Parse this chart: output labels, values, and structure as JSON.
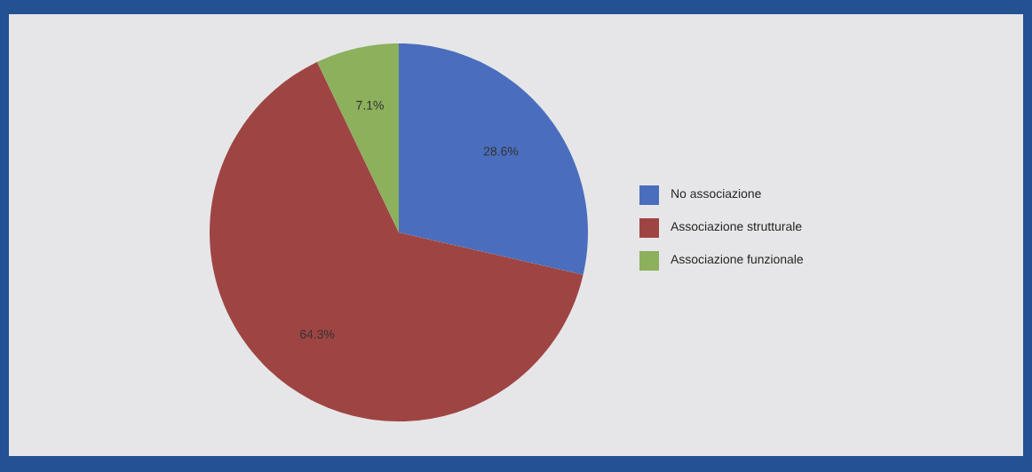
{
  "chart_data": {
    "type": "pie",
    "categories": [
      "No associazione",
      "Associazione strutturale",
      "Associazione funzionale"
    ],
    "values": [
      28.6,
      64.3,
      7.1
    ],
    "colors": [
      "#4a6ebd",
      "#9e4543",
      "#8cb05c"
    ],
    "value_labels": [
      "28.6%",
      "64.3%",
      "7.1%"
    ],
    "legend": "right"
  }
}
